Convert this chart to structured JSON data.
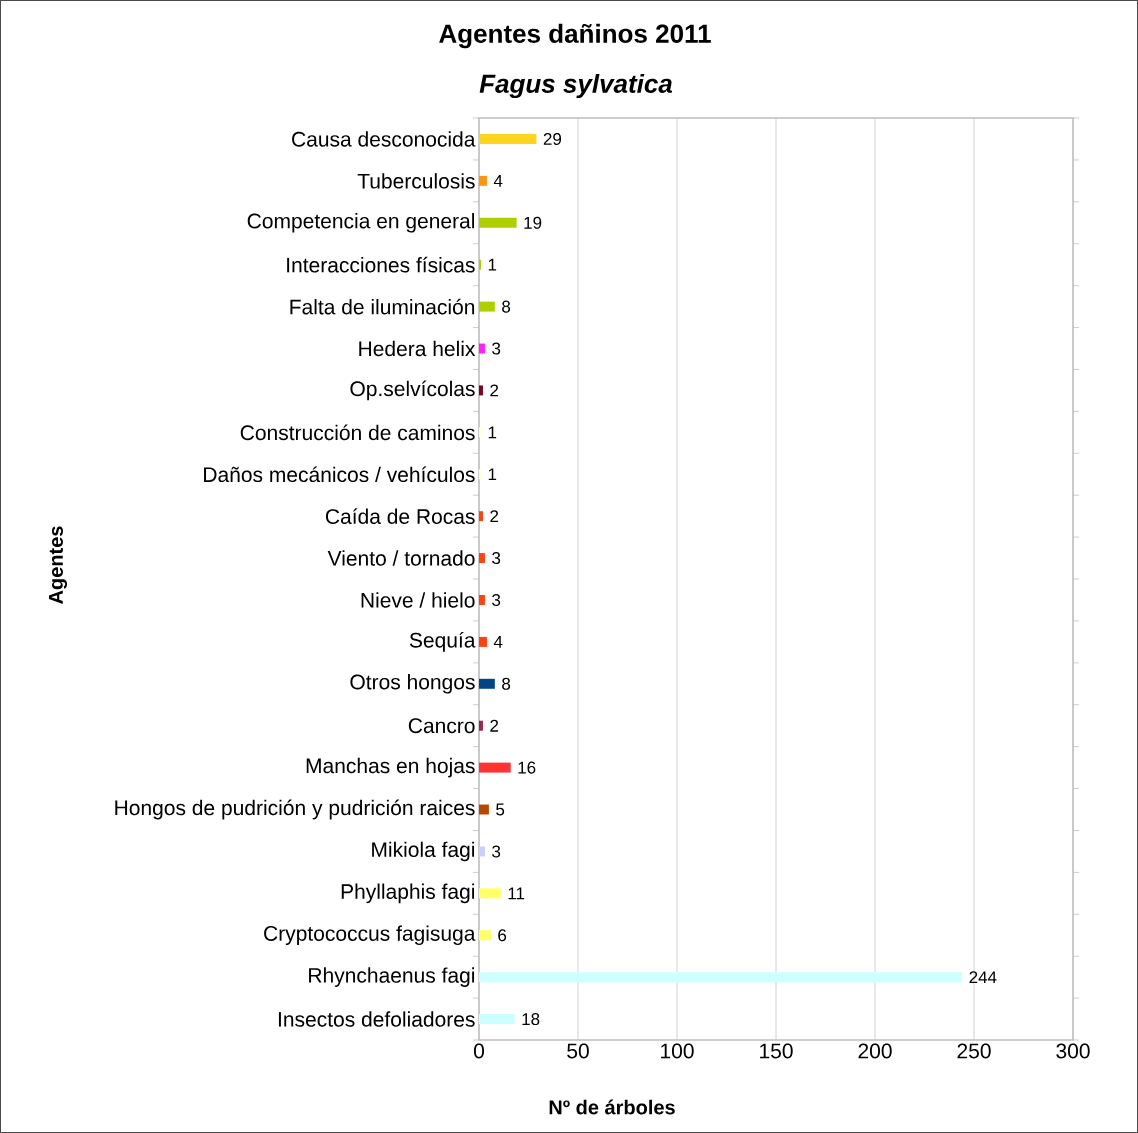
{
  "chart_data": {
    "type": "bar",
    "orientation": "horizontal",
    "title": "Agentes dañinos 2011",
    "subtitle": "Fagus sylvatica",
    "xlabel": "Nº de árboles",
    "ylabel": "Agentes",
    "categories": [
      "Causa desconocida",
      "Tuberculosis",
      "Competencia en general",
      "Interacciones físicas",
      "Falta de iluminación",
      "Hedera helix",
      "Op.selvícolas",
      "Construcción de caminos",
      "Daños mecánicos / vehículos",
      "Caída de Rocas",
      "Viento / tornado",
      "Nieve / hielo",
      "Sequía",
      "Otros hongos",
      "Cancro",
      "Manchas en hojas",
      "Hongos de pudrición y pudrición raices",
      "Mikiola fagi",
      "Phyllaphis fagi",
      "Cryptococcus fagisuga",
      "Rhynchaenus fagi",
      "Insectos defoliadores"
    ],
    "values": [
      29,
      4,
      19,
      1,
      8,
      3,
      2,
      1,
      1,
      2,
      3,
      3,
      4,
      8,
      2,
      16,
      5,
      3,
      11,
      6,
      244,
      18
    ],
    "colors": [
      "#ffd320",
      "#ff950e",
      "#aecf00",
      "#aecf00",
      "#aecf00",
      "#ff20ff",
      "#7e0021",
      "#ffffd7",
      "#ffffd7",
      "#ff420e",
      "#ff420e",
      "#ff420e",
      "#ff420e",
      "#004586",
      "#99284c",
      "#ff3333",
      "#b84700",
      "#ccccff",
      "#ffff66",
      "#ffff66",
      "#ccffff",
      "#ccffff"
    ],
    "data_labels": true,
    "xlim": [
      0,
      300
    ],
    "xticks": [
      0,
      50,
      100,
      150,
      200,
      250,
      300
    ],
    "grid": "x"
  }
}
